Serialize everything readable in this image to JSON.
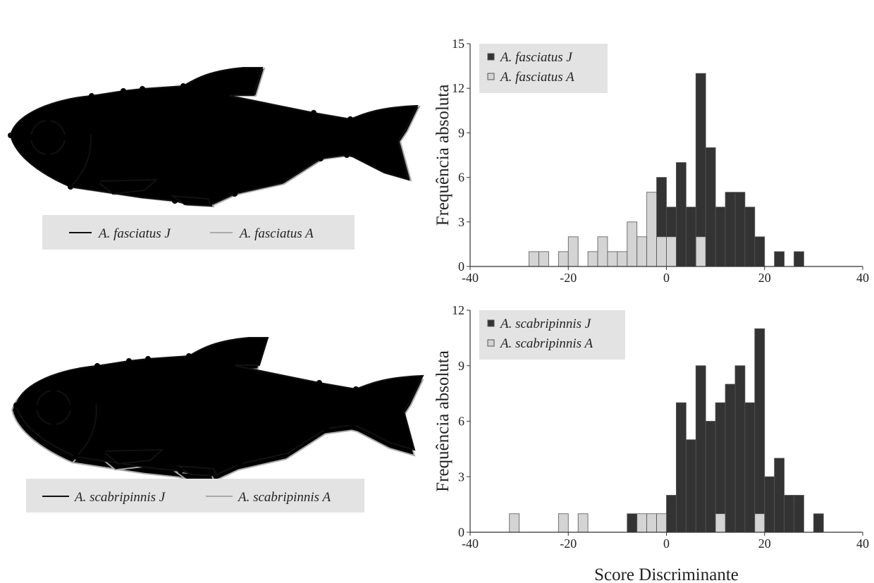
{
  "outline_legends": [
    {
      "items": [
        "A. fasciatus J",
        "A. fasciatus A"
      ]
    },
    {
      "items": [
        "A. scabripinnis J",
        "A. scabripinnis A"
      ]
    }
  ],
  "chart_data": [
    {
      "type": "histogram",
      "ylabel": "Frequência absoluta",
      "bins": [
        -32,
        -30,
        -28,
        -26,
        -24,
        -22,
        -20,
        -18,
        -16,
        -14,
        -12,
        -10,
        -8,
        -6,
        -4,
        -2,
        0,
        2,
        4,
        6,
        8,
        10,
        12,
        14,
        16,
        18,
        20,
        22,
        24,
        26,
        28,
        30,
        32
      ],
      "series": [
        {
          "name": "A. fasciatus J",
          "color": "#333333",
          "values": [
            0,
            0,
            0,
            0,
            0,
            0,
            0,
            0,
            0,
            0,
            0,
            0,
            0,
            0,
            0,
            6,
            4,
            7,
            4,
            13,
            8,
            4,
            5,
            5,
            4,
            2,
            0,
            1,
            0,
            1,
            0,
            0
          ]
        },
        {
          "name": "A. fasciatus A",
          "color": "#d4d4d4",
          "values": [
            0,
            0,
            1,
            1,
            0,
            1,
            2,
            0,
            1,
            2,
            1,
            1,
            3,
            2,
            5,
            2,
            2,
            0,
            0,
            2,
            0,
            0,
            0,
            0,
            0,
            0,
            0,
            0,
            0,
            0,
            0,
            0
          ]
        }
      ],
      "xlim": [
        -40,
        40
      ],
      "xticks": [
        -40,
        -20,
        0,
        20,
        40
      ],
      "ylim": [
        0,
        15
      ],
      "yticks": [
        0,
        3,
        6,
        9,
        12,
        15
      ],
      "legend": "upper left"
    },
    {
      "type": "histogram",
      "ylabel": "Frequência absoluta",
      "xlabel": "Score Discriminante",
      "bins": [
        -32,
        -30,
        -28,
        -26,
        -24,
        -22,
        -20,
        -18,
        -16,
        -14,
        -12,
        -10,
        -8,
        -6,
        -4,
        -2,
        0,
        2,
        4,
        6,
        8,
        10,
        12,
        14,
        16,
        18,
        20,
        22,
        24,
        26,
        28,
        30,
        32
      ],
      "series": [
        {
          "name": "A. scabripinnis J",
          "color": "#333333",
          "values": [
            0,
            0,
            0,
            0,
            0,
            0,
            0,
            0,
            0,
            0,
            0,
            0,
            1,
            0,
            0,
            0,
            2,
            7,
            5,
            9,
            6,
            7,
            8,
            9,
            7,
            11,
            3,
            4,
            2,
            2,
            0,
            1
          ]
        },
        {
          "name": "A. scabripinnis A",
          "color": "#d4d4d4",
          "values": [
            1,
            0,
            0,
            0,
            0,
            1,
            0,
            1,
            0,
            0,
            0,
            0,
            0,
            1,
            1,
            1,
            0,
            0,
            0,
            0,
            0,
            1,
            0,
            0,
            0,
            1,
            0,
            0,
            0,
            0,
            0,
            0
          ]
        }
      ],
      "xlim": [
        -40,
        40
      ],
      "xticks": [
        -40,
        -20,
        0,
        20,
        40
      ],
      "ylim": [
        0,
        12
      ],
      "yticks": [
        0,
        3,
        6,
        9,
        12
      ],
      "legend": "upper left"
    }
  ]
}
